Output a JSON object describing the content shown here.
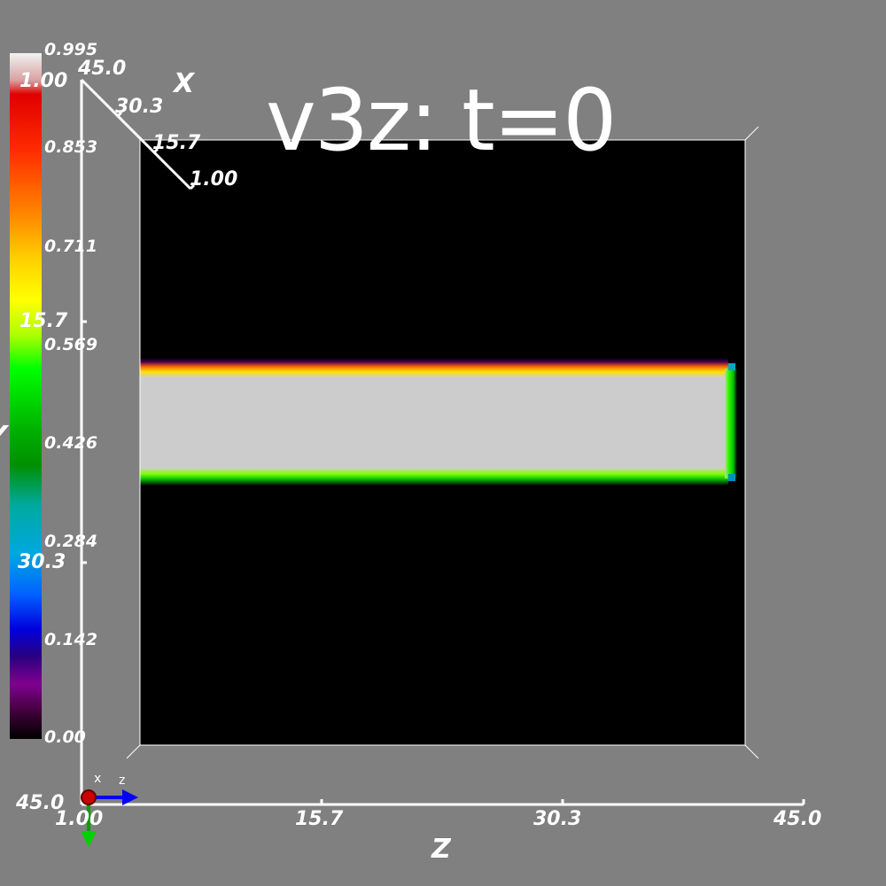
{
  "title": "v3z: t=0",
  "colorbar": {
    "ticks": [
      "0.995",
      "0.853",
      "0.711",
      "0.569",
      "0.426",
      "0.284",
      "0.142",
      "0.00"
    ],
    "colors": [
      "#f0f0f0",
      "#e00000",
      "#ff7f00",
      "#ffff00",
      "#00ff00",
      "#009900",
      "#00aaaa",
      "#00a0ff",
      "#0000ff",
      "#000080",
      "#800080",
      "#000000"
    ]
  },
  "axes": {
    "z": {
      "title": "Z",
      "ticks": [
        "1.00",
        "15.7",
        "30.3",
        "45.0"
      ]
    },
    "y": {
      "title": "Y",
      "ticks": [
        "1.00",
        "15.7",
        "30.3",
        "45.0"
      ]
    },
    "x": {
      "title": "X",
      "ticks": [
        "45.0",
        "30.3",
        "15.7",
        "1.00"
      ]
    }
  },
  "orientation_widget": {
    "x_label": "x",
    "z_label": "z"
  }
}
